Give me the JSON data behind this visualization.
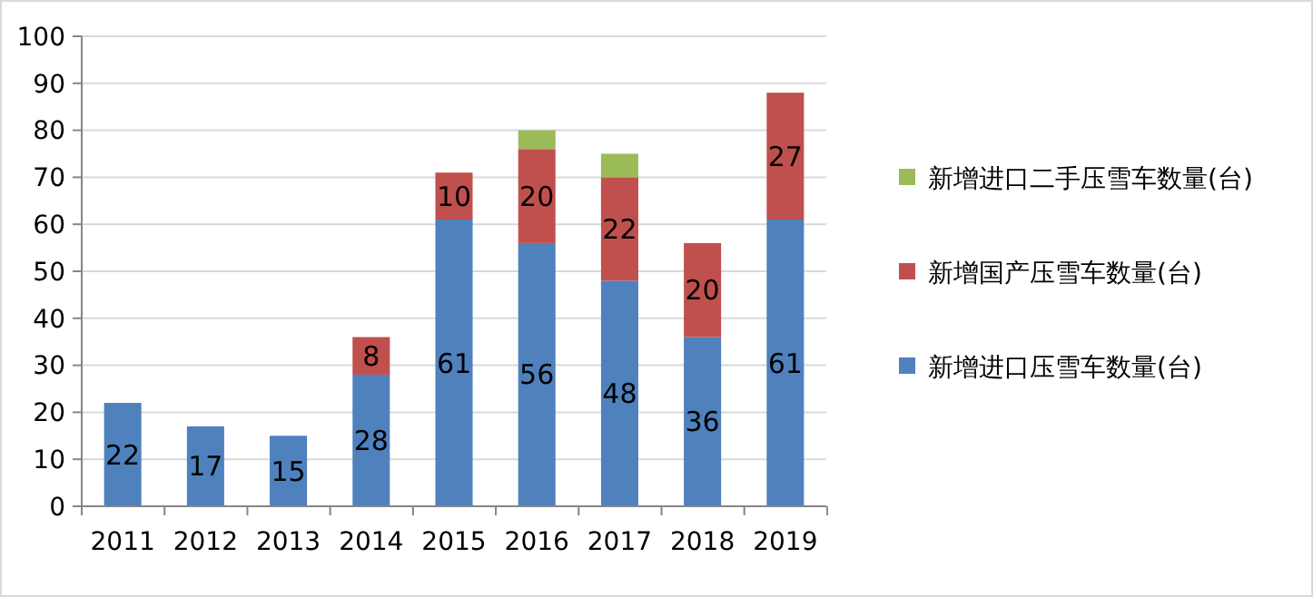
{
  "chart_data": {
    "type": "bar",
    "stacked": true,
    "categories": [
      "2011",
      "2012",
      "2013",
      "2014",
      "2015",
      "2016",
      "2017",
      "2018",
      "2019"
    ],
    "series": [
      {
        "name": "新增进口压雪车数量(台)",
        "color": "#4f81bd",
        "values": [
          22,
          17,
          15,
          28,
          61,
          56,
          48,
          36,
          61
        ],
        "value_labels": [
          "22",
          "17",
          "15",
          "28",
          "61",
          "56",
          "48",
          "36",
          "61"
        ]
      },
      {
        "name": "新增国产压雪车数量(台)",
        "color": "#c0504d",
        "values": [
          null,
          null,
          null,
          8,
          10,
          20,
          22,
          20,
          27
        ],
        "value_labels": [
          null,
          null,
          null,
          "8",
          "10",
          "20",
          "22",
          "20",
          "27"
        ]
      },
      {
        "name": "新增进口二手压雪车数量(台)",
        "color": "#9bbb59",
        "values": [
          null,
          null,
          null,
          null,
          null,
          4,
          5,
          null,
          null
        ]
      }
    ],
    "ylim": [
      0,
      100
    ],
    "yticks": [
      0,
      10,
      20,
      30,
      40,
      50,
      60,
      70,
      80,
      90,
      100
    ],
    "grid": "y",
    "legend": "right"
  }
}
